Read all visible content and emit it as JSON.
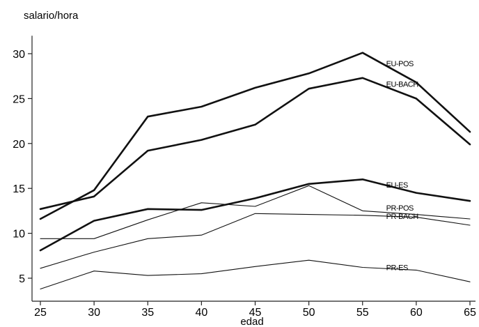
{
  "chart_data": {
    "type": "line",
    "ylabel": "salario/hora",
    "xlabel": "edad",
    "x": [
      25,
      30,
      35,
      40,
      45,
      50,
      55,
      60,
      65
    ],
    "xlim": [
      25,
      65
    ],
    "ylim": [
      3,
      32
    ],
    "yticks": [
      5,
      10,
      15,
      20,
      25,
      30
    ],
    "xticks": [
      25,
      30,
      35,
      40,
      45,
      50,
      55,
      60,
      65
    ],
    "grid": false,
    "series": [
      {
        "name": "EU-POS",
        "weight": "thick",
        "values": [
          11.6,
          14.8,
          23.0,
          24.1,
          26.2,
          27.8,
          30.1,
          26.8,
          21.3
        ]
      },
      {
        "name": "EU-BACH",
        "weight": "thick",
        "values": [
          12.7,
          14.1,
          19.2,
          20.4,
          22.1,
          26.1,
          27.3,
          25.0,
          19.9
        ]
      },
      {
        "name": "EU-ES",
        "weight": "thick",
        "values": [
          8.1,
          11.4,
          12.7,
          12.6,
          13.9,
          15.5,
          16.0,
          14.5,
          13.6
        ]
      },
      {
        "name": "PR-POS",
        "weight": "thin",
        "values": [
          9.4,
          9.4,
          11.5,
          13.4,
          13.0,
          15.3,
          12.5,
          12.1,
          11.6
        ]
      },
      {
        "name": "PR-BACH",
        "weight": "thin",
        "values": [
          6.1,
          7.9,
          9.4,
          9.8,
          12.2,
          12.1,
          12.0,
          11.8,
          10.9
        ]
      },
      {
        "name": "PR-ES",
        "weight": "thin",
        "values": [
          3.8,
          5.8,
          5.3,
          5.5,
          6.3,
          7.0,
          6.2,
          5.9,
          4.6
        ]
      }
    ]
  }
}
